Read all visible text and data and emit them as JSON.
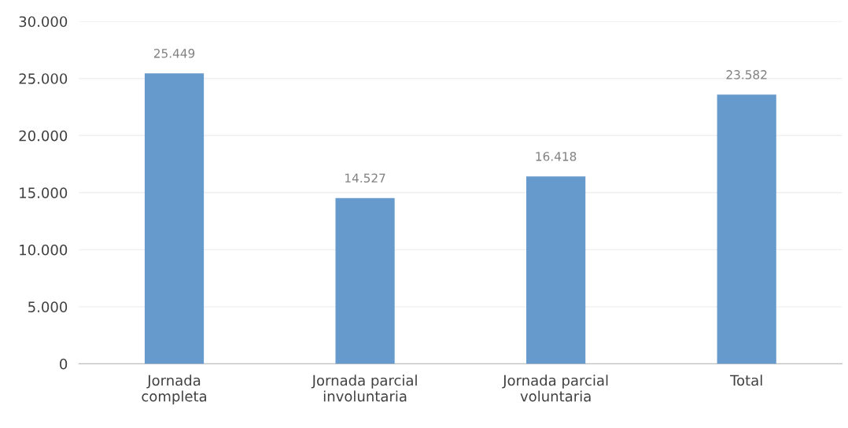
{
  "chart_data": {
    "type": "bar",
    "categories": [
      "Jornada\ncompleta",
      "Jornada parcial\ninvoluntaria",
      "Jornada parcial\nvoluntaria",
      "Total"
    ],
    "values": [
      25449,
      14527,
      16418,
      23582
    ],
    "value_labels": [
      "25.449",
      "14.527",
      "16.418",
      "23.582"
    ],
    "color": "#6699cc",
    "ylim": [
      0,
      30000
    ],
    "yticks": [
      {
        "value": 0,
        "label": "0"
      },
      {
        "value": 5000,
        "label": "5.000"
      },
      {
        "value": 10000,
        "label": "10.000"
      },
      {
        "value": 15000,
        "label": "15.000"
      },
      {
        "value": 20000,
        "label": "20.000"
      },
      {
        "value": 25000,
        "label": "25.000"
      },
      {
        "value": 30000,
        "label": "30.000"
      }
    ],
    "grid": "y"
  }
}
